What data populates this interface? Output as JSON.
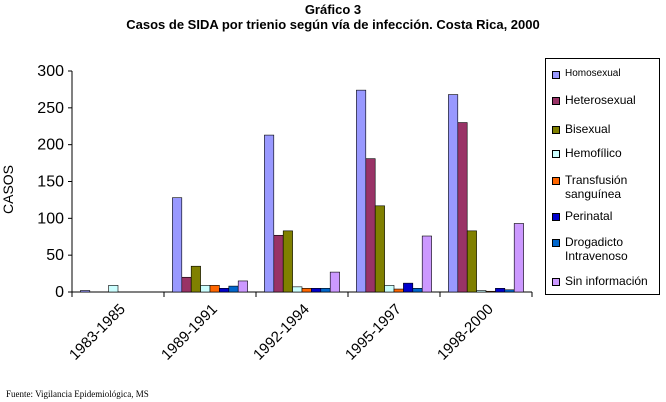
{
  "header": {
    "title": "Gráfico 3",
    "subtitle": "Casos de SIDA por trienio según vía de infección. Costa  Rica, 2000"
  },
  "source": "Fuente: Vigilancia Epidemiológica, MS",
  "chart_data": {
    "type": "bar",
    "title": "Gráfico 3",
    "subtitle": "Casos de SIDA por trienio según vía de infección. Costa  Rica, 2000",
    "ylabel": "CASOS",
    "xlabel": "",
    "ylim": [
      0,
      300
    ],
    "yticks": [
      0,
      50,
      100,
      150,
      200,
      250,
      300
    ],
    "grid": false,
    "legend_position": "right",
    "categories": [
      "1983-1985",
      "1989-1991",
      "1992-1994",
      "1995-1997",
      "1998-2000"
    ],
    "series": [
      {
        "name": "Homosexual",
        "color": "#9999ff",
        "values": [
          2,
          128,
          213,
          274,
          268
        ]
      },
      {
        "name": "Heterosexual",
        "color": "#993366",
        "values": [
          0,
          20,
          77,
          181,
          230
        ]
      },
      {
        "name": "Bisexual",
        "color": "#808000",
        "values": [
          0,
          35,
          83,
          117,
          83
        ]
      },
      {
        "name": "Hemofílico",
        "color": "#ccffff",
        "values": [
          9,
          9,
          7,
          9,
          2
        ]
      },
      {
        "name": "Transfusión sanguínea",
        "color": "#ff6600",
        "values": [
          0,
          9,
          5,
          4,
          1
        ]
      },
      {
        "name": "Perinatal",
        "color": "#0000cc",
        "values": [
          0,
          5,
          5,
          12,
          5
        ]
      },
      {
        "name": "Drogadicto Intravenoso",
        "color": "#0066cc",
        "values": [
          0,
          8,
          5,
          5,
          3
        ]
      },
      {
        "name": "Sin información",
        "color": "#cc99ff",
        "values": [
          0,
          15,
          27,
          76,
          93
        ]
      }
    ]
  }
}
